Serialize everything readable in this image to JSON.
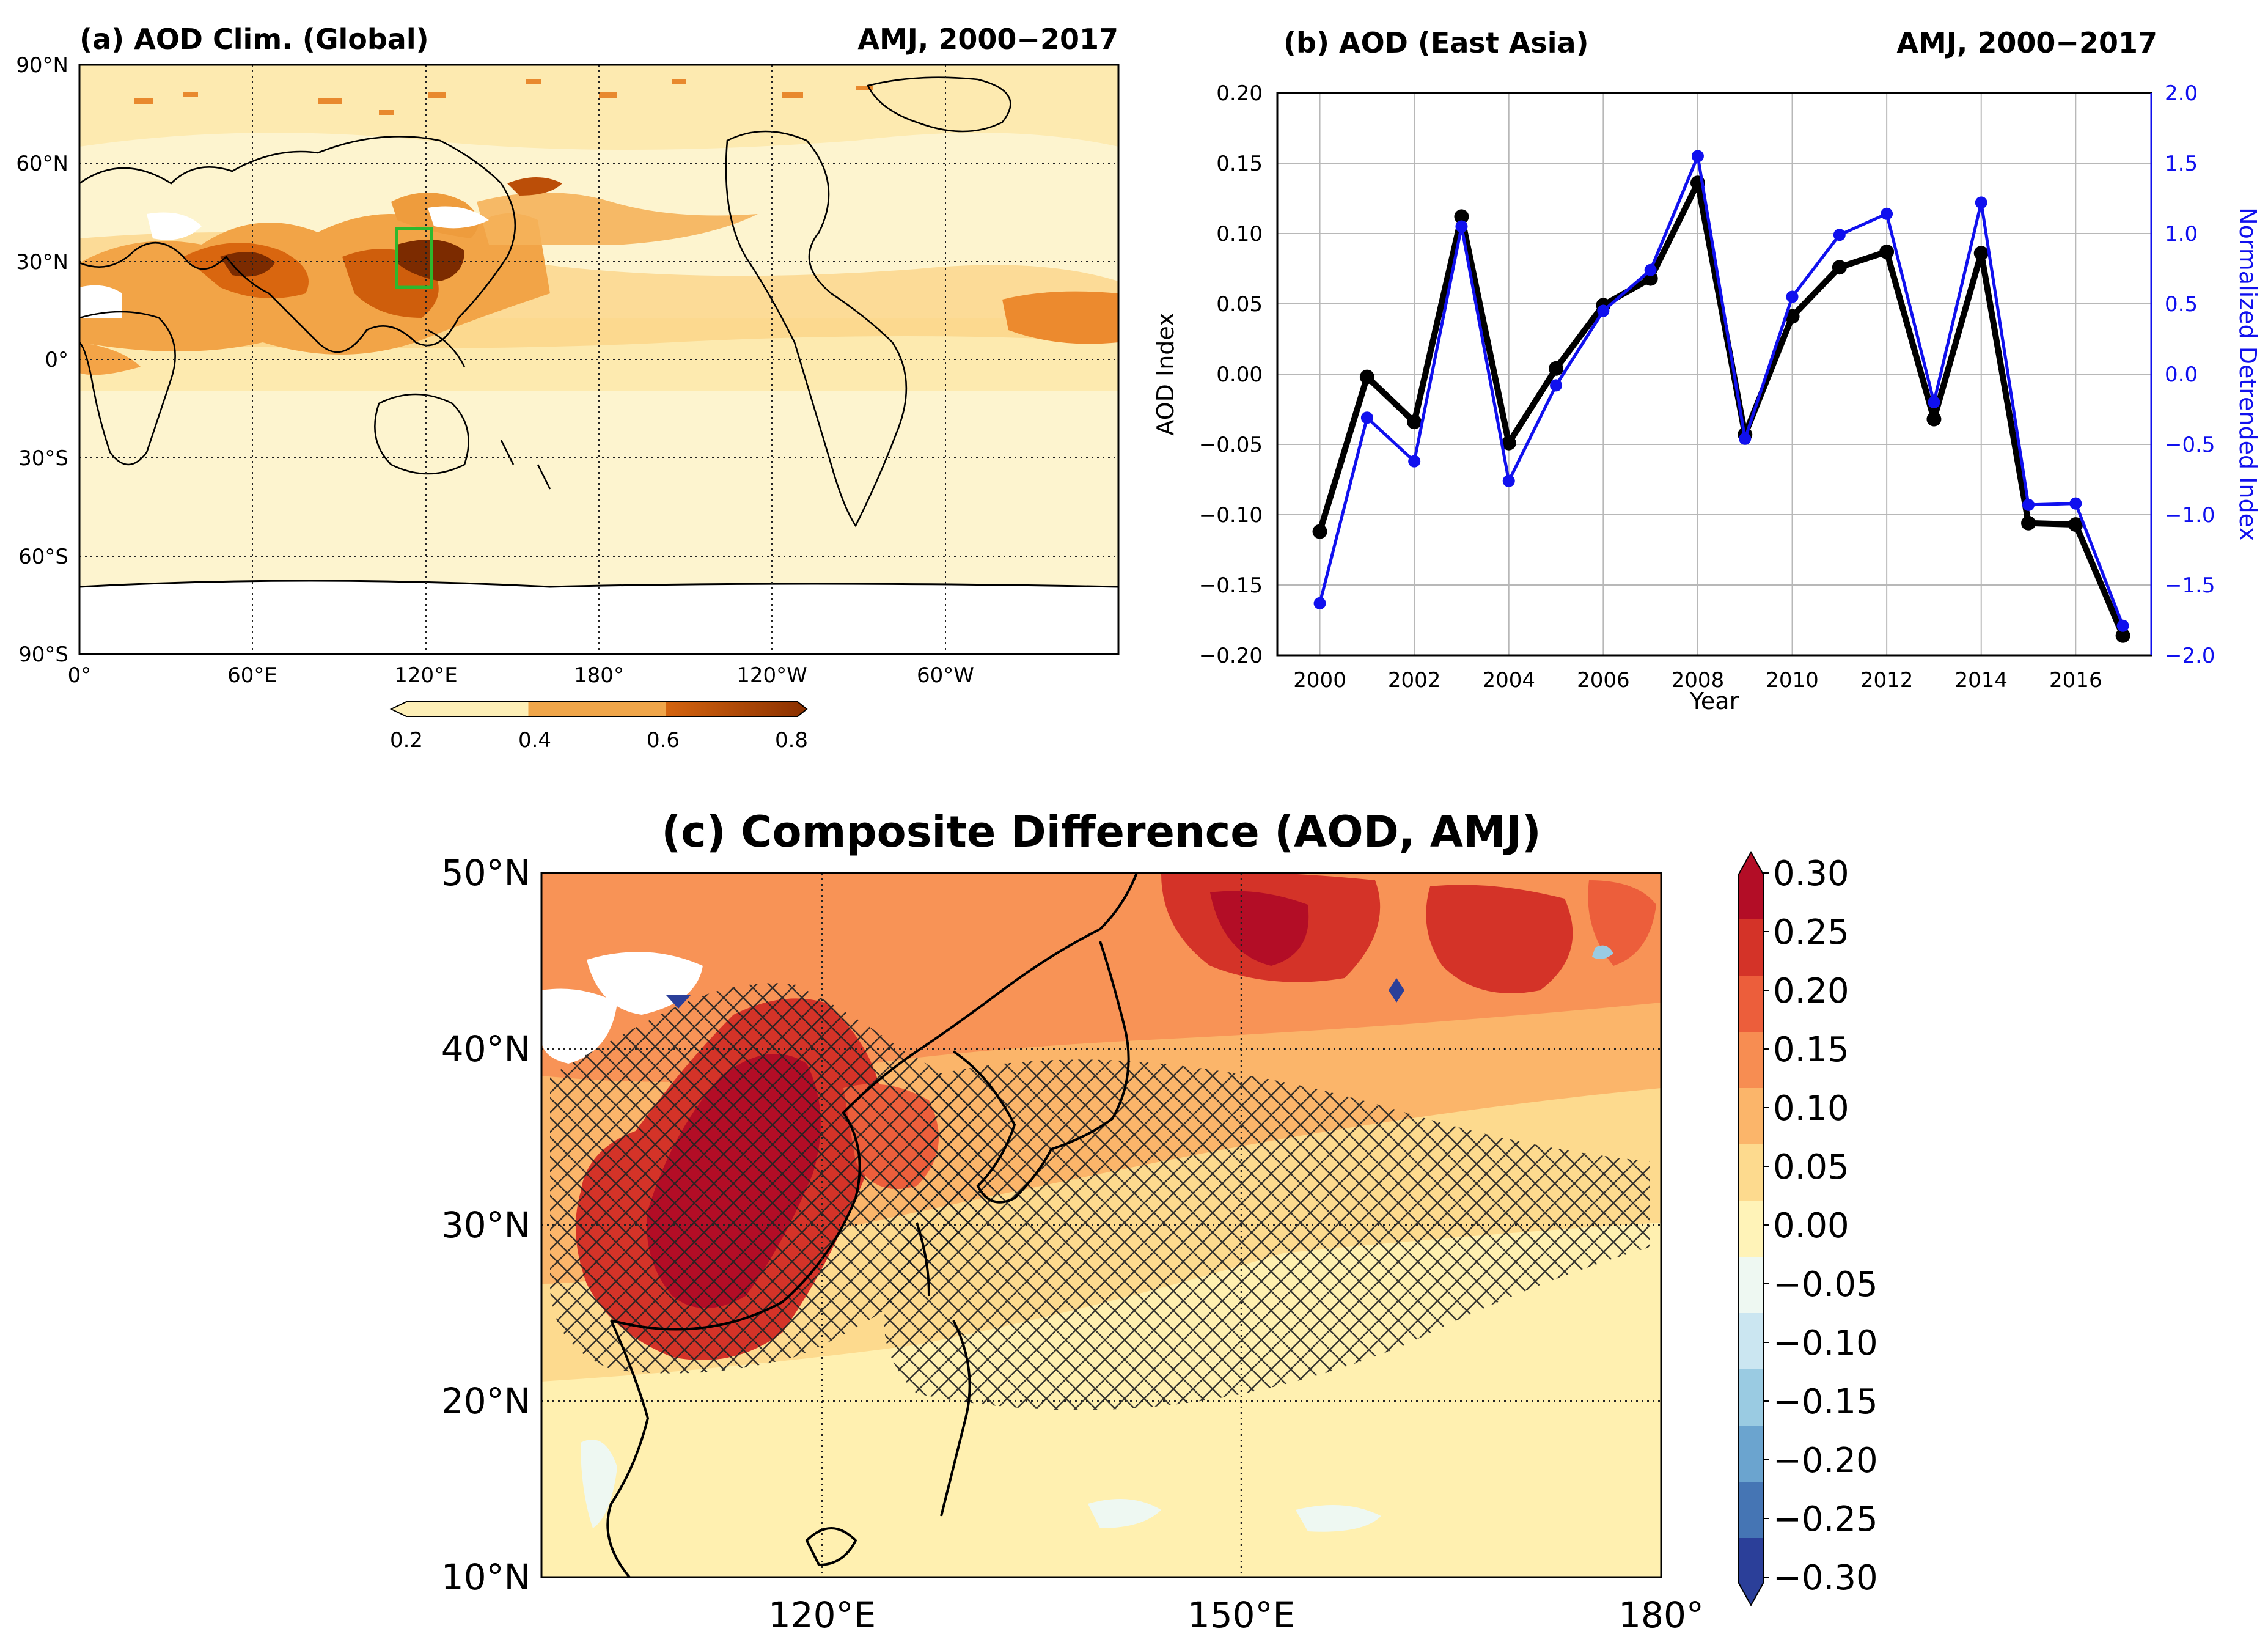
{
  "chart_data": [
    {
      "id": "a",
      "type": "heatmap",
      "title": "(a) AOD Clim. (Global)",
      "subtitle": "AMJ, 2000−2017",
      "x_tick_labels": [
        "0°",
        "60°E",
        "120°E",
        "180°",
        "120°W",
        "60°W"
      ],
      "y_tick_labels": [
        "90°N",
        "60°N",
        "30°N",
        "0°",
        "30°S",
        "60°S",
        "90°S"
      ],
      "x_range": [
        0,
        360
      ],
      "y_range": [
        -90,
        90
      ],
      "grid": true,
      "colorbar": {
        "ticks": [
          "0.2",
          "0.4",
          "0.6",
          "0.8"
        ],
        "levels": [
          0.2,
          0.4,
          0.6,
          0.8
        ],
        "colors": [
          "#fdefb7",
          "#f4a447",
          "#d4640f",
          "#8a3000"
        ]
      },
      "highlight_box": {
        "lon": [
          110,
          122
        ],
        "lat": [
          22,
          40
        ],
        "color": "#2db82d"
      }
    },
    {
      "id": "b",
      "type": "line",
      "title": "(b) AOD (East Asia)",
      "subtitle": "AMJ, 2000−2017",
      "xlabel": "Year",
      "ylabel": "AOD Index",
      "y2label": "Normalized Detrended Index",
      "x": [
        2000,
        2001,
        2002,
        2003,
        2004,
        2005,
        2006,
        2007,
        2008,
        2009,
        2010,
        2011,
        2012,
        2013,
        2014,
        2015,
        2016,
        2017
      ],
      "xlim": [
        1999.1,
        2017.6
      ],
      "x_ticks": [
        "2000",
        "2002",
        "2004",
        "2006",
        "2008",
        "2010",
        "2012",
        "2014",
        "2016"
      ],
      "ylim": [
        -0.2,
        0.2
      ],
      "y_ticks": [
        "0.20",
        "0.15",
        "0.10",
        "0.05",
        "0.00",
        "−0.05",
        "−0.10",
        "−0.15",
        "−0.20"
      ],
      "y2lim": [
        -2.0,
        2.0
      ],
      "y2_ticks": [
        "2.0",
        "1.5",
        "1.0",
        "0.5",
        "0.0",
        "−0.5",
        "−1.0",
        "−1.5",
        "−2.0"
      ],
      "grid": true,
      "series": [
        {
          "name": "AOD Index",
          "axis": "left",
          "color": "#000000",
          "values": [
            -0.112,
            -0.002,
            -0.034,
            0.112,
            -0.049,
            0.004,
            0.049,
            0.068,
            0.136,
            -0.043,
            0.041,
            0.076,
            0.087,
            -0.032,
            0.086,
            -0.106,
            -0.107,
            -0.186
          ]
        },
        {
          "name": "Normalized Detrended Index",
          "axis": "right",
          "color": "#1010ee",
          "values": [
            -1.63,
            -0.31,
            -0.62,
            1.05,
            -0.76,
            -0.08,
            0.45,
            0.74,
            1.55,
            -0.46,
            0.55,
            0.99,
            1.14,
            -0.2,
            1.22,
            -0.93,
            -0.92,
            -1.79
          ]
        }
      ]
    },
    {
      "id": "c",
      "type": "heatmap",
      "title": "(c) Composite Difference (AOD, AMJ)",
      "x_tick_labels": [
        "120°E",
        "150°E",
        "180°"
      ],
      "y_tick_labels": [
        "50°N",
        "40°N",
        "30°N",
        "20°N",
        "10°N"
      ],
      "x_range": [
        100,
        180
      ],
      "y_range": [
        10,
        50
      ],
      "grid": true,
      "hatching": "significant",
      "colorbar": {
        "ticks": [
          "0.30",
          "0.25",
          "0.20",
          "0.15",
          "0.10",
          "0.05",
          "0.00",
          "−0.05",
          "−0.10",
          "−0.15",
          "−0.20",
          "−0.25",
          "−0.30"
        ],
        "colors": [
          "#b30d26",
          "#d43328",
          "#ec5e3b",
          "#f78d52",
          "#fbb56a",
          "#fdda8e",
          "#fff3b8",
          "#eef8f2",
          "#cbe6f1",
          "#9acbe2",
          "#6ba4cf",
          "#4575b4",
          "#2b3f99"
        ]
      }
    }
  ]
}
